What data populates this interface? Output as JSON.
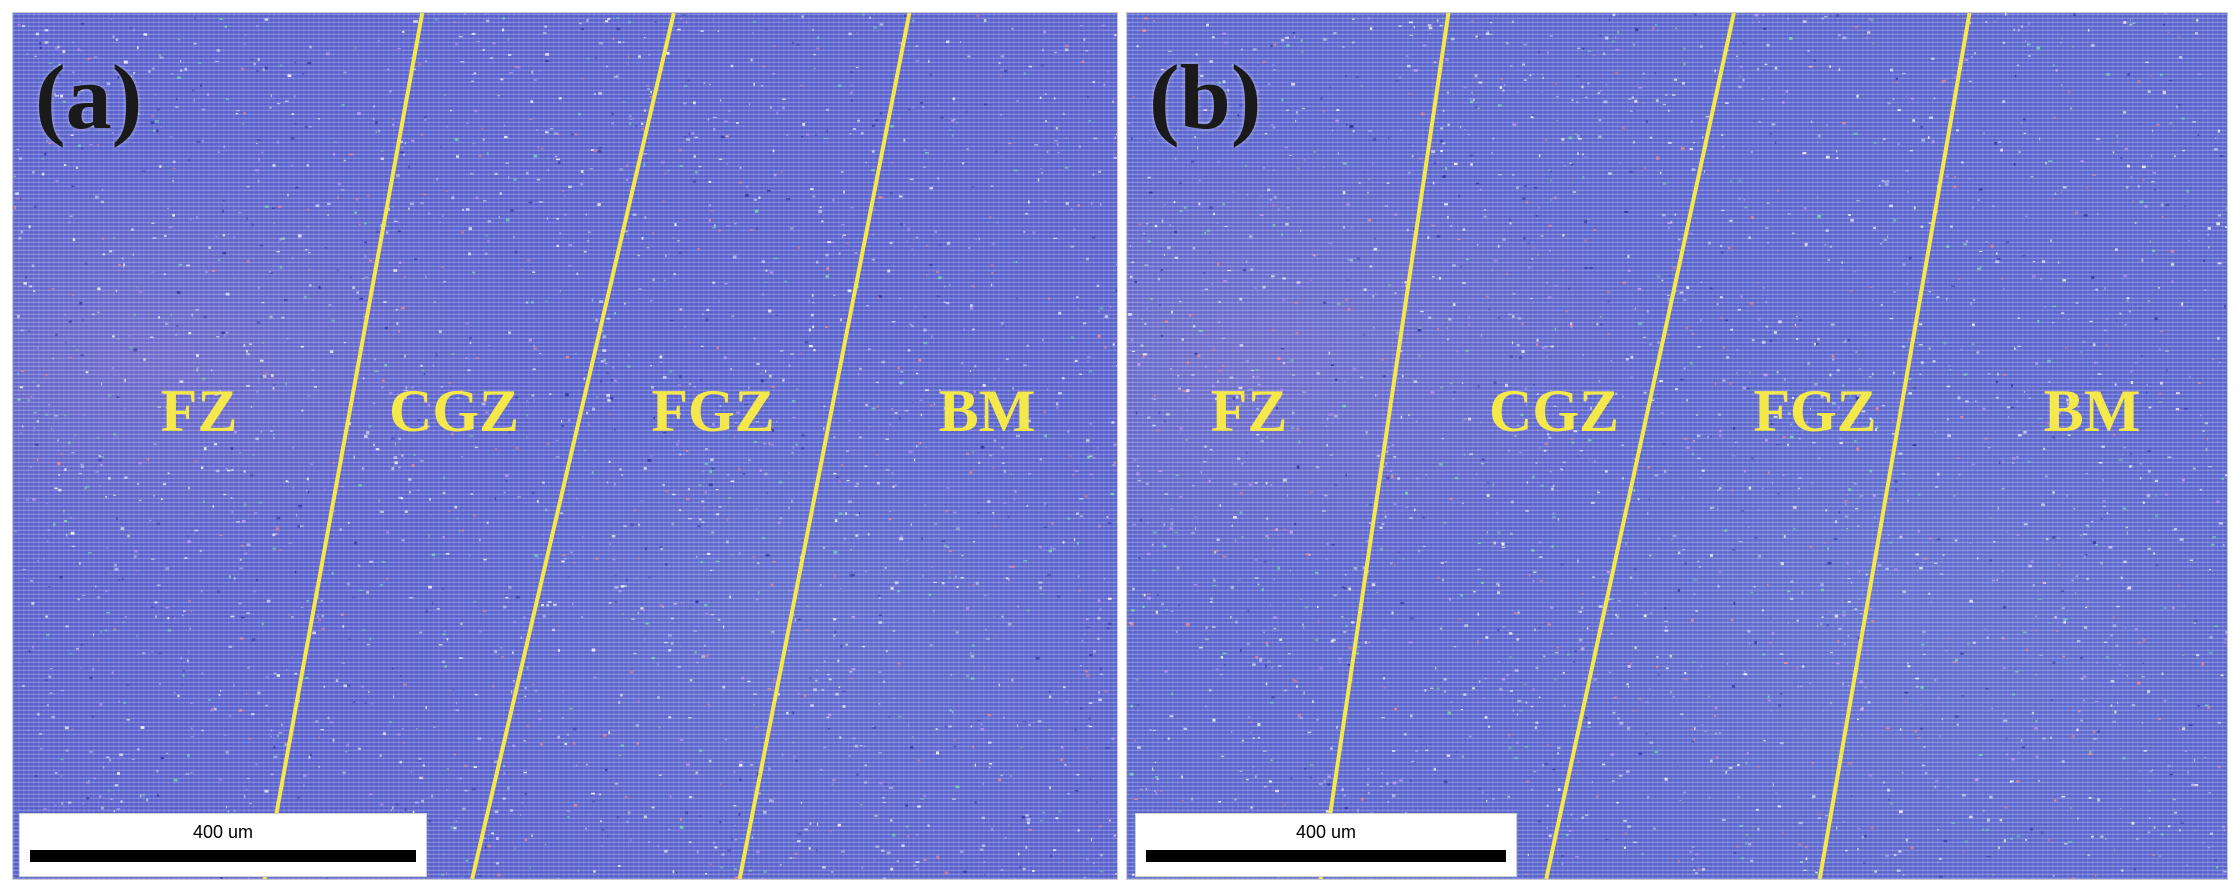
{
  "figure": {
    "colors": {
      "boundary_line": "#f4e84a",
      "zone_label": "#f4e84a",
      "panel_label": "#1a1a1a",
      "micrograph_base": "#5a63cf"
    },
    "panels": [
      {
        "label": "(a)",
        "zones": [
          "FZ",
          "CGZ",
          "FGZ",
          "BM"
        ],
        "scale_bar": "400 um"
      },
      {
        "label": "(b)",
        "zones": [
          "FZ",
          "CGZ",
          "FGZ",
          "BM"
        ],
        "scale_bar": "400 um"
      }
    ]
  }
}
